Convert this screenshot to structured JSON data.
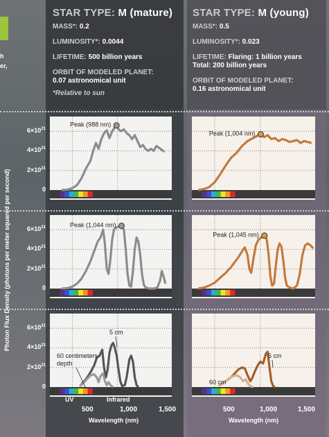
{
  "left_fragment": [
    "h",
    "er,"
  ],
  "y_axis": {
    "title": "Photon Flux Density (photons per meter squared per second)",
    "tick_labels": [
      "6×10",
      "4×10",
      "2×10",
      "0"
    ],
    "exponent": "21"
  },
  "columns": [
    {
      "star_type_label": "STAR TYPE:",
      "star_type_value": "M (mature)",
      "mass_label": "MASS*:",
      "mass_value": "0.2",
      "lum_label": "LUMINOSITY*:",
      "lum_value": "0.0044",
      "life_label": "LIFETIME:",
      "life_value": "500 billion years",
      "orbit_label": "ORBIT OF MODELED PLANET:",
      "orbit_value": "0.07 astronomical unit",
      "note": "*Relative to sun"
    },
    {
      "star_type_label": "STAR TYPE:",
      "star_type_value": "M (young)",
      "mass_label": "MASS*:",
      "mass_value": "0.5",
      "lum_label": "LUMINOSITY*:",
      "lum_value": "0.023",
      "life_label": "LIFETIME:",
      "life_value": "Flaring: 1 billion years",
      "life_value2": "Total: 200 billion years",
      "orbit_label": "ORBIT OF MODELED PLANET:",
      "orbit_value": "0.16 astronomical unit"
    }
  ],
  "x_axis": {
    "title": "Wavelength (nm)",
    "tick_labels": [
      "500",
      "1,000",
      "1,500"
    ]
  },
  "band_labels": {
    "uv": "UV",
    "infrared": "Infrared"
  },
  "colors": {
    "mature_line": "#8c8c8c",
    "young_line": "#c27a3c",
    "peak_marker_young": "#d89a3a",
    "peak_marker_mature": "#9a9a9a"
  },
  "chart_data": [
    {
      "type": "line",
      "panel": "mature-top",
      "xlim": [
        250,
        1600
      ],
      "ylim": [
        0,
        7.5
      ],
      "y_unit": "×10^21",
      "peak_label": "Peak (988 nm)",
      "peak": [
        988,
        6.6
      ],
      "series": [
        {
          "values": [
            [
              380,
              0
            ],
            [
              450,
              0.05
            ],
            [
              500,
              0.2
            ],
            [
              550,
              0.5
            ],
            [
              600,
              1.2
            ],
            [
              650,
              2.2
            ],
            [
              700,
              3.0
            ],
            [
              730,
              4.0
            ],
            [
              760,
              4.8
            ],
            [
              790,
              4.2
            ],
            [
              820,
              5.2
            ],
            [
              850,
              5.8
            ],
            [
              880,
              6.1
            ],
            [
              910,
              5.3
            ],
            [
              940,
              6.0
            ],
            [
              970,
              6.4
            ],
            [
              988,
              6.6
            ],
            [
              1010,
              6.2
            ],
            [
              1040,
              6.0
            ],
            [
              1070,
              6.2
            ],
            [
              1100,
              5.8
            ],
            [
              1130,
              5.6
            ],
            [
              1160,
              5.2
            ],
            [
              1190,
              5.6
            ],
            [
              1220,
              5.0
            ],
            [
              1250,
              4.4
            ],
            [
              1280,
              4.6
            ],
            [
              1310,
              4.2
            ],
            [
              1340,
              4.0
            ],
            [
              1370,
              4.2
            ],
            [
              1400,
              4.0
            ],
            [
              1430,
              4.5
            ],
            [
              1460,
              4.3
            ],
            [
              1490,
              4.1
            ],
            [
              1520,
              3.9
            ]
          ]
        }
      ]
    },
    {
      "type": "line",
      "panel": "young-top",
      "xlim": [
        250,
        1600
      ],
      "ylim": [
        0,
        7.5
      ],
      "y_unit": "×10^21",
      "peak_label": "Peak (1,004 nm)",
      "peak": [
        1004,
        5.7
      ],
      "series": [
        {
          "values": [
            [
              320,
              0
            ],
            [
              380,
              0.1
            ],
            [
              440,
              0.3
            ],
            [
              500,
              0.8
            ],
            [
              560,
              1.6
            ],
            [
              620,
              2.5
            ],
            [
              680,
              3.3
            ],
            [
              740,
              3.8
            ],
            [
              800,
              4.5
            ],
            [
              860,
              5.0
            ],
            [
              920,
              5.3
            ],
            [
              960,
              5.5
            ],
            [
              1004,
              5.7
            ],
            [
              1040,
              5.4
            ],
            [
              1080,
              5.6
            ],
            [
              1120,
              5.2
            ],
            [
              1160,
              5.3
            ],
            [
              1200,
              5.0
            ],
            [
              1240,
              5.2
            ],
            [
              1280,
              5.1
            ],
            [
              1320,
              4.9
            ],
            [
              1360,
              5.0
            ],
            [
              1400,
              5.1
            ],
            [
              1440,
              4.8
            ],
            [
              1480,
              5.0
            ],
            [
              1520,
              4.9
            ],
            [
              1560,
              4.8
            ]
          ]
        }
      ]
    },
    {
      "type": "line",
      "panel": "mature-middle",
      "xlim": [
        250,
        1600
      ],
      "ylim": [
        0,
        7.5
      ],
      "y_unit": "×10^21",
      "peak_label": "Peak (1,044 nm)",
      "peak": [
        1044,
        6.4
      ],
      "series": [
        {
          "values": [
            [
              380,
              0
            ],
            [
              450,
              0.05
            ],
            [
              500,
              0.2
            ],
            [
              550,
              0.5
            ],
            [
              600,
              1.0
            ],
            [
              650,
              1.8
            ],
            [
              700,
              2.8
            ],
            [
              740,
              3.8
            ],
            [
              780,
              4.8
            ],
            [
              810,
              5.2
            ],
            [
              840,
              6.0
            ],
            [
              860,
              4.5
            ],
            [
              880,
              2.0
            ],
            [
              900,
              1.5
            ],
            [
              920,
              3.0
            ],
            [
              940,
              5.0
            ],
            [
              960,
              6.0
            ],
            [
              980,
              6.2
            ],
            [
              1010,
              6.3
            ],
            [
              1044,
              6.4
            ],
            [
              1070,
              6.0
            ],
            [
              1090,
              4.0
            ],
            [
              1110,
              1.5
            ],
            [
              1130,
              0.3
            ],
            [
              1150,
              0.2
            ],
            [
              1170,
              1.8
            ],
            [
              1190,
              4.0
            ],
            [
              1210,
              5.2
            ],
            [
              1230,
              4.8
            ],
            [
              1250,
              3.5
            ],
            [
              1270,
              1.5
            ],
            [
              1290,
              0.4
            ],
            [
              1310,
              0.1
            ],
            [
              1350,
              0
            ],
            [
              1400,
              0
            ],
            [
              1440,
              0.1
            ],
            [
              1470,
              0.8
            ],
            [
              1490,
              1.8
            ],
            [
              1510,
              1.2
            ],
            [
              1530,
              0.5
            ]
          ]
        }
      ]
    },
    {
      "type": "line",
      "panel": "young-middle",
      "xlim": [
        250,
        1600
      ],
      "ylim": [
        0,
        7.5
      ],
      "y_unit": "×10^21",
      "peak_label": "Peak (1,045 nm)",
      "peak": [
        1045,
        5.4
      ],
      "series": [
        {
          "values": [
            [
              320,
              0
            ],
            [
              380,
              0.1
            ],
            [
              440,
              0.3
            ],
            [
              500,
              0.6
            ],
            [
              560,
              1.1
            ],
            [
              620,
              1.6
            ],
            [
              680,
              2.2
            ],
            [
              720,
              2.7
            ],
            [
              760,
              3.2
            ],
            [
              800,
              3.8
            ],
            [
              830,
              4.2
            ],
            [
              860,
              3.4
            ],
            [
              880,
              2.0
            ],
            [
              900,
              1.6
            ],
            [
              920,
              2.8
            ],
            [
              950,
              4.4
            ],
            [
              980,
              5.0
            ],
            [
              1010,
              5.2
            ],
            [
              1045,
              5.4
            ],
            [
              1070,
              5.0
            ],
            [
              1090,
              3.5
            ],
            [
              1110,
              1.2
            ],
            [
              1130,
              0.3
            ],
            [
              1150,
              0.5
            ],
            [
              1170,
              2.4
            ],
            [
              1190,
              4.0
            ],
            [
              1210,
              4.6
            ],
            [
              1230,
              4.3
            ],
            [
              1250,
              3.0
            ],
            [
              1270,
              1.2
            ],
            [
              1290,
              0.3
            ],
            [
              1320,
              0.1
            ],
            [
              1360,
              0
            ],
            [
              1400,
              0.3
            ],
            [
              1430,
              1.4
            ],
            [
              1460,
              3.4
            ],
            [
              1490,
              4.4
            ],
            [
              1520,
              4.6
            ],
            [
              1550,
              4.4
            ],
            [
              1580,
              4.1
            ]
          ]
        }
      ]
    },
    {
      "type": "line",
      "panel": "mature-bottom",
      "xlim": [
        250,
        1600
      ],
      "ylim": [
        0,
        7.5
      ],
      "y_unit": "×10^21",
      "labels": [
        "60 centimeters depth",
        "5 cm"
      ],
      "series": [
        {
          "name": "5 cm",
          "values": [
            [
              600,
              0.3
            ],
            [
              650,
              0.8
            ],
            [
              700,
              1.5
            ],
            [
              740,
              2.2
            ],
            [
              770,
              3.0
            ],
            [
              800,
              3.2
            ],
            [
              830,
              3.8
            ],
            [
              850,
              2.0
            ],
            [
              870,
              1.0
            ],
            [
              890,
              1.8
            ],
            [
              910,
              3.5
            ],
            [
              930,
              4.2
            ],
            [
              950,
              4.5
            ],
            [
              970,
              4.0
            ],
            [
              990,
              3.2
            ],
            [
              1010,
              1.8
            ],
            [
              1030,
              0.6
            ],
            [
              1050,
              0.1
            ],
            [
              1080,
              0.2
            ],
            [
              1100,
              1.0
            ],
            [
              1130,
              2.8
            ],
            [
              1150,
              3.2
            ],
            [
              1170,
              2.6
            ],
            [
              1190,
              1.0
            ],
            [
              1210,
              0.2
            ],
            [
              1230,
              0
            ]
          ]
        },
        {
          "name": "60 centimeters depth",
          "values": [
            [
              580,
              0.1
            ],
            [
              620,
              0.4
            ],
            [
              660,
              0.8
            ],
            [
              700,
              1.2
            ],
            [
              740,
              1.3
            ],
            [
              770,
              1.0
            ],
            [
              790,
              0.5
            ],
            [
              810,
              1.1
            ],
            [
              840,
              1.4
            ],
            [
              860,
              0.6
            ],
            [
              880,
              0.2
            ],
            [
              900,
              0.5
            ],
            [
              920,
              0.2
            ],
            [
              950,
              0
            ]
          ]
        }
      ]
    },
    {
      "type": "line",
      "panel": "young-bottom",
      "xlim": [
        250,
        1600
      ],
      "ylim": [
        0,
        7.5
      ],
      "y_unit": "×10^21",
      "labels": [
        "60 cm",
        "5 cm"
      ],
      "series": [
        {
          "name": "5 cm",
          "values": [
            [
              560,
              0.2
            ],
            [
              620,
              0.6
            ],
            [
              680,
              1.0
            ],
            [
              720,
              1.4
            ],
            [
              760,
              1.8
            ],
            [
              800,
              2.0
            ],
            [
              830,
              1.9
            ],
            [
              860,
              1.2
            ],
            [
              890,
              0.6
            ],
            [
              910,
              0.9
            ],
            [
              940,
              1.6
            ],
            [
              970,
              2.2
            ],
            [
              1000,
              2.6
            ],
            [
              1030,
              2.4
            ],
            [
              1060,
              3.4
            ],
            [
              1080,
              3.6
            ],
            [
              1100,
              2.0
            ],
            [
              1120,
              0.6
            ],
            [
              1140,
              0.1
            ],
            [
              1160,
              0
            ]
          ]
        },
        {
          "name": "60 cm",
          "values": [
            [
              540,
              0.1
            ],
            [
              580,
              0.3
            ],
            [
              620,
              0.6
            ],
            [
              660,
              0.9
            ],
            [
              700,
              1.1
            ],
            [
              740,
              1.2
            ],
            [
              780,
              1.0
            ],
            [
              810,
              0.6
            ],
            [
              840,
              0.8
            ],
            [
              860,
              0.4
            ],
            [
              890,
              0.1
            ],
            [
              920,
              0
            ]
          ]
        }
      ]
    }
  ]
}
